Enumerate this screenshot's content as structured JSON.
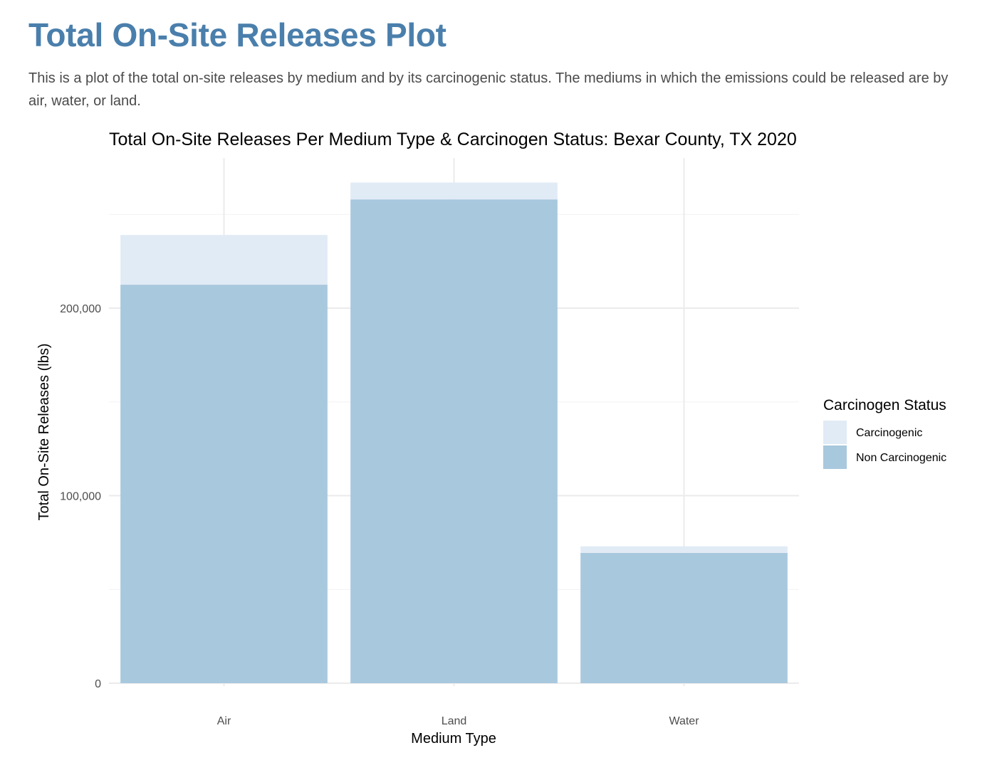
{
  "page": {
    "title": "Total On-Site Releases Plot",
    "description": "This is a plot of the total on-site releases by medium and by its carcinogenic status. The mediums in which the emissions could be released are by air, water, or land."
  },
  "chart_data": {
    "type": "bar",
    "stacked": true,
    "title": "Total On-Site Releases Per Medium Type & Carcinogen Status: Bexar County, TX 2020",
    "xlabel": "Medium Type",
    "ylabel": "Total On-Site Releases (lbs)",
    "categories": [
      "Air",
      "Land",
      "Water"
    ],
    "series": [
      {
        "name": "Non Carcinogenic",
        "values": [
          212500,
          258000,
          69500
        ],
        "color": "#a8c8de"
      },
      {
        "name": "Carcinogenic",
        "values": [
          26500,
          9000,
          3500
        ],
        "color": "#e1ebf5"
      }
    ],
    "y_ticks": [
      {
        "value": 0,
        "label": "0"
      },
      {
        "value": 100000,
        "label": "100,000"
      },
      {
        "value": 200000,
        "label": "200,000"
      }
    ],
    "ylim": [
      0,
      280000
    ],
    "grid": true,
    "legend": {
      "title": "Carcinogen Status",
      "position": "right",
      "entries": [
        {
          "label": "Carcinogenic",
          "color": "#e1ebf5"
        },
        {
          "label": "Non Carcinogenic",
          "color": "#a8c8de"
        }
      ]
    }
  }
}
